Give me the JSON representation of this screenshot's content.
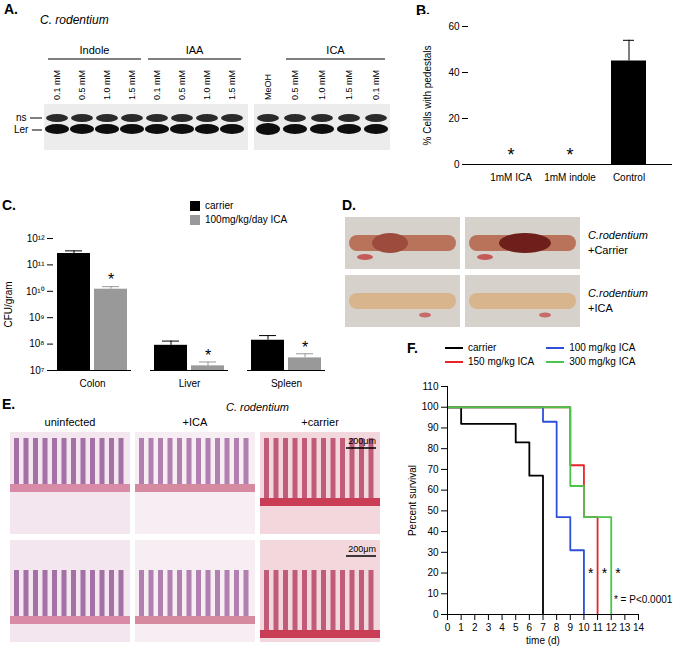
{
  "figure": {
    "blot": {
      "panel": "A.",
      "organism": "C. rodentium",
      "groups": [
        {
          "name": "Indole",
          "lanes": [
            "0.1 mM",
            "0.5 mM",
            "1.0 mM",
            "1.5 mM"
          ]
        },
        {
          "name": "IAA",
          "lanes": [
            "0.1 mM",
            "0.5 mM",
            "1.0 mM",
            "1.5 mM"
          ]
        },
        {
          "name": "ICA",
          "lanes": [
            "0.5 mM",
            "1.0 mM",
            "1.5 mM",
            "0.1 mM"
          ]
        }
      ],
      "control_lane": "MeOH",
      "bands": [
        "ns",
        "Ler"
      ]
    },
    "photos": {
      "panel": "D.",
      "rows": [
        {
          "organism": "C.rodentium",
          "treatment": "+Carrier"
        },
        {
          "organism": "C.rodentium",
          "treatment": "+ICA"
        }
      ]
    },
    "histology": {
      "panel": "E.",
      "columns": [
        "uninfected",
        "+ICA",
        "+carrier"
      ],
      "organism": "C. rodentium",
      "scale_bar": "200μm"
    }
  },
  "chart_data": [
    {
      "panel": "B.",
      "type": "bar",
      "categories": [
        "1mM ICA",
        "1mM indole",
        "Control"
      ],
      "values": [
        0,
        0,
        45
      ],
      "error_upper": [
        null,
        null,
        54
      ],
      "color": "#000000",
      "ylabel": "% Cells with pedestals",
      "ylim": [
        0,
        60
      ],
      "yticks": [
        0,
        20,
        40,
        60
      ],
      "annotations": [
        {
          "category": "1mM ICA",
          "y": 4,
          "text": "*"
        },
        {
          "category": "1mM indole",
          "y": 4,
          "text": "*"
        }
      ]
    },
    {
      "panel": "C.",
      "type": "bar",
      "log": "y",
      "categories": [
        "Colon",
        "Liver",
        "Spleen"
      ],
      "series": [
        {
          "name": "carrier",
          "color": "#000000",
          "values": [
            270000000000.0,
            90000000.0,
            140000000.0
          ],
          "error_upper": [
            340000000000.0,
            130000000.0,
            210000000.0
          ]
        },
        {
          "name": "100mg/kg/day ICA",
          "color": "#999999",
          "values": [
            12000000000.0,
            15000000.0,
            30000000.0
          ],
          "error_upper": [
            15000000000.0,
            21000000.0,
            43000000.0
          ]
        }
      ],
      "ylabel": "CFU/gram",
      "ylim": [
        10000000.0,
        1000000000000.0
      ],
      "yticks": [
        {
          "value": 10000000.0,
          "label": "10⁷"
        },
        {
          "value": 100000000.0,
          "label": "10⁸"
        },
        {
          "value": 1000000000.0,
          "label": "10⁹"
        },
        {
          "value": 10000000000.0,
          "label": "10¹⁰"
        },
        {
          "value": 100000000000.0,
          "label": "10¹¹"
        },
        {
          "value": 1000000000000.0,
          "label": "10¹²"
        }
      ],
      "legend": "top-right",
      "annotations": [
        {
          "category": "Colon",
          "series": "100mg/kg/day ICA",
          "y": 26000000000.0,
          "text": "*"
        },
        {
          "category": "Liver",
          "series": "100mg/kg/day ICA",
          "y": 36000000.0,
          "text": "*"
        },
        {
          "category": "Spleen",
          "series": "100mg/kg/day ICA",
          "y": 75000000.0,
          "text": "*"
        }
      ]
    },
    {
      "panel": "F.",
      "type": "line",
      "line_style": "step",
      "xlabel": "time (d)",
      "ylabel": "Percent survival",
      "xlim": [
        0,
        14
      ],
      "xticks": [
        0,
        1,
        2,
        3,
        4,
        5,
        6,
        7,
        8,
        9,
        10,
        11,
        12,
        13,
        14
      ],
      "ylim": [
        0,
        110
      ],
      "yticks": [
        0,
        10,
        20,
        30,
        40,
        50,
        60,
        70,
        80,
        90,
        100,
        110
      ],
      "legend": "top-right",
      "series": [
        {
          "name": "carrier",
          "color": "#000000",
          "x": [
            0,
            1,
            5,
            6,
            7
          ],
          "values": [
            100,
            92,
            83,
            67,
            0
          ]
        },
        {
          "name": "100 mg/kg ICA",
          "color": "#2e4fd8",
          "x": [
            0,
            7,
            8,
            9,
            10
          ],
          "values": [
            100,
            93,
            47,
            31,
            0
          ]
        },
        {
          "name": "150 mg/kg ICA",
          "color": "#e8242a",
          "x": [
            0,
            9,
            10,
            11
          ],
          "values": [
            100,
            72,
            47,
            0
          ]
        },
        {
          "name": "300 mg/kg ICA",
          "color": "#4cc44c",
          "x": [
            0,
            9,
            10,
            12
          ],
          "values": [
            100,
            62,
            47,
            0
          ]
        }
      ],
      "annotations": [
        {
          "x": 10.5,
          "y": 20,
          "text": "*"
        },
        {
          "x": 11.5,
          "y": 20,
          "text": "*"
        },
        {
          "x": 12.5,
          "y": 20,
          "text": "*"
        },
        {
          "x": 12.2,
          "y": 7,
          "text": "* = P<0.0001"
        }
      ]
    }
  ]
}
